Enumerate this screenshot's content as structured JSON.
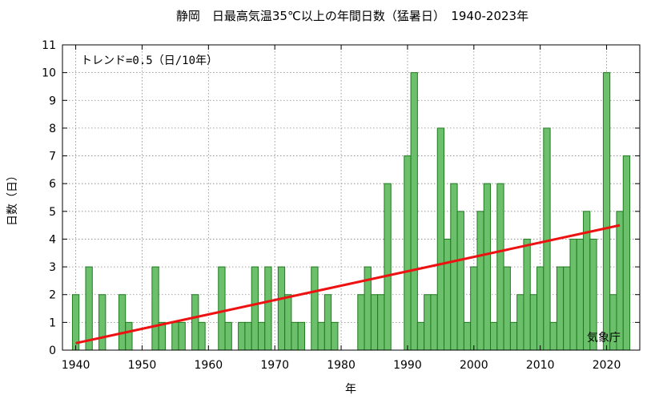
{
  "chart_data": {
    "type": "bar",
    "title": "静岡　日最高気温35℃以上の年間日数（猛暑日）　1940-2023年",
    "xlabel": "年",
    "ylabel": "日数（日）",
    "trend_text": "トレンド=0.5（日/10年）",
    "source": "気象庁",
    "xlim": [
      1938,
      2025
    ],
    "ylim": [
      0,
      11
    ],
    "x_ticks": [
      1940,
      1950,
      1960,
      1970,
      1980,
      1990,
      2000,
      2010,
      2020
    ],
    "y_ticks": [
      0,
      1,
      2,
      3,
      4,
      5,
      6,
      7,
      8,
      9,
      10,
      11
    ],
    "grid": true,
    "x": [
      1940,
      1941,
      1942,
      1943,
      1944,
      1945,
      1946,
      1947,
      1948,
      1949,
      1950,
      1951,
      1952,
      1953,
      1954,
      1955,
      1956,
      1957,
      1958,
      1959,
      1960,
      1961,
      1962,
      1963,
      1964,
      1965,
      1966,
      1967,
      1968,
      1969,
      1970,
      1971,
      1972,
      1973,
      1974,
      1975,
      1976,
      1977,
      1978,
      1979,
      1980,
      1981,
      1982,
      1983,
      1984,
      1985,
      1986,
      1987,
      1988,
      1989,
      1990,
      1991,
      1992,
      1993,
      1994,
      1995,
      1996,
      1997,
      1998,
      1999,
      2000,
      2001,
      2002,
      2003,
      2004,
      2005,
      2006,
      2007,
      2008,
      2009,
      2010,
      2011,
      2012,
      2013,
      2014,
      2015,
      2016,
      2017,
      2018,
      2019,
      2020,
      2021,
      2022,
      2023
    ],
    "values": [
      2,
      0,
      3,
      0,
      2,
      0,
      0,
      2,
      1,
      0,
      0,
      0,
      3,
      1,
      0,
      1,
      1,
      0,
      2,
      1,
      0,
      0,
      3,
      1,
      0,
      1,
      1,
      3,
      1,
      3,
      0,
      3,
      2,
      1,
      1,
      0,
      3,
      1,
      2,
      1,
      0,
      0,
      0,
      2,
      3,
      2,
      2,
      6,
      0,
      0,
      7,
      10,
      1,
      2,
      2,
      8,
      4,
      6,
      5,
      1,
      3,
      5,
      6,
      1,
      6,
      3,
      1,
      2,
      4,
      2,
      3,
      8,
      1,
      3,
      3,
      4,
      4,
      5,
      4,
      0,
      10,
      2,
      5,
      7
    ],
    "trend_line": {
      "x": [
        1940,
        2022
      ],
      "y": [
        0.25,
        4.5
      ]
    },
    "colors": {
      "bar_fill": "#6cc06c",
      "bar_stroke": "#1f7a1f",
      "trend": "#ee1111"
    }
  }
}
